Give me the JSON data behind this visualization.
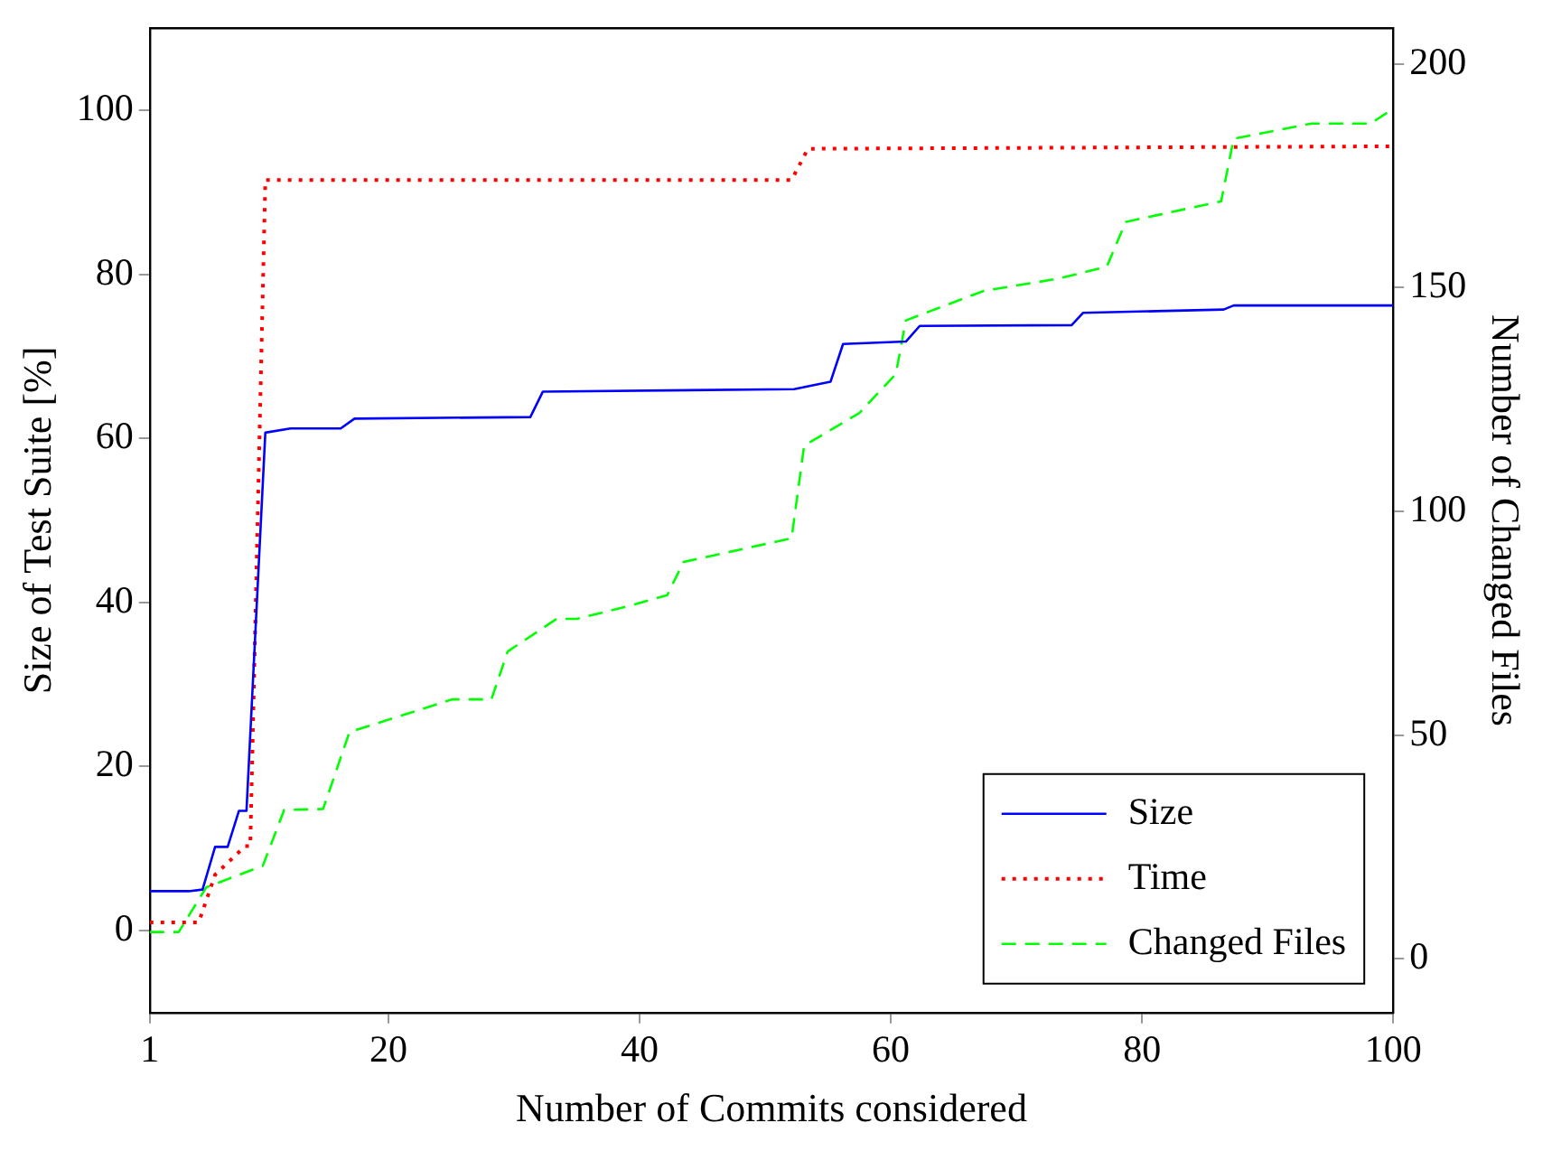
{
  "chart_data": {
    "type": "line",
    "xlabel": "Number of Commits considered",
    "ylabel": "Size of Test Suite [%]",
    "y2label": "Number of Changed Files",
    "xlim": [
      1,
      100
    ],
    "xticks": [
      1,
      20,
      40,
      60,
      80,
      100
    ],
    "ylim": [
      -10,
      110
    ],
    "yticks": [
      0,
      20,
      40,
      60,
      80,
      100
    ],
    "y2lim": [
      -12,
      208
    ],
    "y2ticks": [
      0,
      50,
      100,
      150,
      200
    ],
    "grid": false,
    "legend": "bottom right",
    "marker": "none",
    "series": [
      {
        "name": "Size",
        "color": "#0000ff",
        "line_style": "solid",
        "x": [
          1,
          4.1,
          5.2,
          6.2,
          7.2,
          8.1,
          8.7,
          10.2,
          12.2,
          16.2,
          17.3,
          31.3,
          32.3,
          52.3,
          55.2,
          56.2,
          61.2,
          62.3,
          74.4,
          75.3,
          86.5,
          87.3,
          100
        ],
        "values": [
          4.8,
          4.8,
          5,
          10.2,
          10.2,
          14.6,
          14.6,
          60.7,
          61.2,
          61.2,
          62.4,
          62.6,
          65.7,
          66.0,
          66.9,
          71.5,
          71.8,
          73.7,
          73.8,
          75.3,
          75.7,
          76.2,
          76.2
        ]
      },
      {
        "name": "Time",
        "color": "#ff0000",
        "line_style": "dotted",
        "x": [
          1,
          4.9,
          6.2,
          8.6,
          9.0,
          10.2,
          52.1,
          53.4,
          100
        ],
        "values": [
          1,
          1,
          6.8,
          10.3,
          10.3,
          91.5,
          91.5,
          95.3,
          95.6
        ]
      },
      {
        "name": "Changed Files",
        "color": "#00ff00",
        "line_style": "dashed",
        "axis": "y2",
        "x": [
          1,
          3.3,
          5.5,
          10,
          11.7,
          14.8,
          16.9,
          25.1,
          28.2,
          29.5,
          33.4,
          35,
          39.6,
          42.2,
          43.5,
          52.1,
          53.1,
          57.5,
          60.4,
          61.2,
          67.4,
          73.3,
          77.2,
          78.7,
          86.3,
          87.3,
          93.5,
          98.2,
          100
        ],
        "values": [
          6,
          6,
          16,
          20.8,
          33.3,
          33.5,
          50.7,
          58,
          58,
          68.7,
          76,
          76,
          79.2,
          81.3,
          88.7,
          94,
          114.7,
          122,
          130.7,
          142.7,
          149.3,
          152,
          154.7,
          164.7,
          169.3,
          183.3,
          186.7,
          186.7,
          190
        ]
      }
    ]
  }
}
